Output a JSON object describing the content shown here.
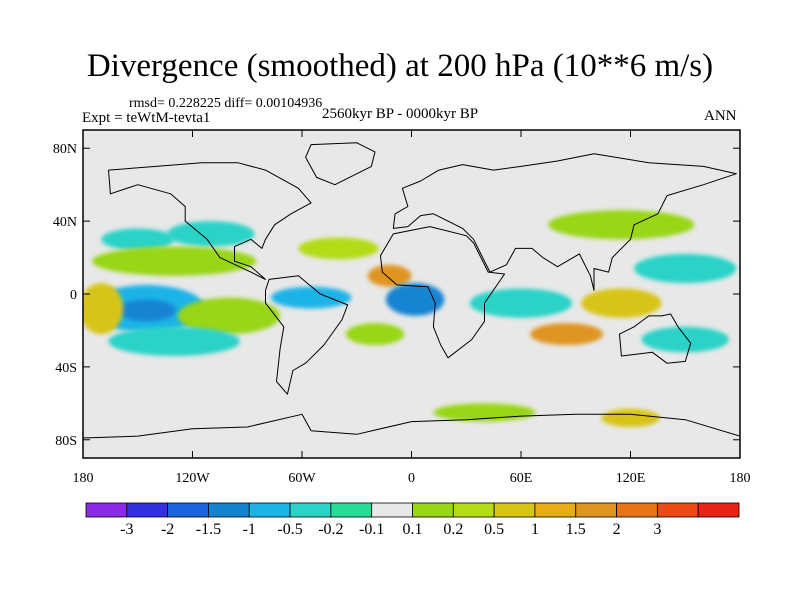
{
  "header": {
    "title": "Divergence (smoothed) at 200 hPa (10**6 m/s)",
    "stats": "rmsd= 0.228225 diff= 0.00104936",
    "experiment": "Expt = teWtM-tevta1",
    "period": "2560kyr BP - 0000kyr BP",
    "season": "ANN"
  },
  "map": {
    "projection": "cylindrical-equidistant",
    "lon_range": [
      -180,
      180
    ],
    "lat_range": [
      -90,
      90
    ],
    "x_ticks": [
      {
        "lon": -180,
        "label": "180"
      },
      {
        "lon": -120,
        "label": "120W"
      },
      {
        "lon": -60,
        "label": "60W"
      },
      {
        "lon": 0,
        "label": "0"
      },
      {
        "lon": 60,
        "label": "60E"
      },
      {
        "lon": 120,
        "label": "120E"
      },
      {
        "lon": 180,
        "label": "180"
      }
    ],
    "y_ticks": [
      {
        "lat": 80,
        "label": "80N"
      },
      {
        "lat": 40,
        "label": "40N"
      },
      {
        "lat": 0,
        "label": "0"
      },
      {
        "lat": -40,
        "label": "40S"
      },
      {
        "lat": -80,
        "label": "80S"
      }
    ],
    "colors": {
      "ocean": "#e8e8e8",
      "coast": "#000000"
    },
    "anomaly_blobs": [
      {
        "name": "cyan-n-pacific-1",
        "lon": -150,
        "lat": 30,
        "rlon": 20,
        "rlat": 6,
        "color": "#2cd2c8"
      },
      {
        "name": "cyan-n-pacific-2",
        "lon": -110,
        "lat": 33,
        "rlon": 24,
        "rlat": 7,
        "color": "#2cd2c8"
      },
      {
        "name": "green-n-pacific",
        "lon": -130,
        "lat": 18,
        "rlon": 45,
        "rlat": 8,
        "color": "#98d616"
      },
      {
        "name": "blue-e-pacific-outer",
        "lon": -145,
        "lat": -8,
        "rlon": 32,
        "rlat": 13,
        "color": "#1ab4e8"
      },
      {
        "name": "blue-e-pacific-inner",
        "lon": -145,
        "lat": -9,
        "rlon": 16,
        "rlat": 6,
        "color": "#1484d2"
      },
      {
        "name": "green-s-pacific",
        "lon": -100,
        "lat": -12,
        "rlon": 28,
        "rlat": 10,
        "color": "#98d616"
      },
      {
        "name": "cyan-s-pacific",
        "lon": -130,
        "lat": -26,
        "rlon": 36,
        "rlat": 8,
        "color": "#2cd2c8"
      },
      {
        "name": "yellow-w-pacific",
        "lon": -170,
        "lat": -8,
        "rlon": 12,
        "rlat": 14,
        "color": "#d8c414"
      },
      {
        "name": "green-atlantic-n",
        "lon": -40,
        "lat": 25,
        "rlon": 22,
        "rlat": 6,
        "color": "#b4dc14"
      },
      {
        "name": "blue-s-america",
        "lon": -55,
        "lat": -2,
        "rlon": 22,
        "rlat": 6,
        "color": "#1ab4e8"
      },
      {
        "name": "orange-w-africa",
        "lon": -12,
        "lat": 10,
        "rlon": 12,
        "rlat": 6,
        "color": "#e09420"
      },
      {
        "name": "blue-gulf-guinea",
        "lon": 2,
        "lat": -3,
        "rlon": 16,
        "rlat": 9,
        "color": "#1484d2"
      },
      {
        "name": "green-s-atlantic",
        "lon": -20,
        "lat": -22,
        "rlon": 16,
        "rlat": 6,
        "color": "#98d616"
      },
      {
        "name": "orange-indian",
        "lon": 85,
        "lat": -22,
        "rlon": 20,
        "rlat": 6,
        "color": "#e09420"
      },
      {
        "name": "cyan-indian",
        "lon": 60,
        "lat": -5,
        "rlon": 28,
        "rlat": 8,
        "color": "#2cd2c8"
      },
      {
        "name": "yellow-maritime",
        "lon": 115,
        "lat": -5,
        "rlon": 22,
        "rlat": 8,
        "color": "#d8c414"
      },
      {
        "name": "cyan-nw-pacific",
        "lon": 150,
        "lat": 14,
        "rlon": 28,
        "rlat": 8,
        "color": "#2cd2c8"
      },
      {
        "name": "green-asia",
        "lon": 115,
        "lat": 38,
        "rlon": 40,
        "rlat": 8,
        "color": "#98d616"
      },
      {
        "name": "cyan-sw-pacific",
        "lon": 150,
        "lat": -25,
        "rlon": 24,
        "rlat": 7,
        "color": "#2cd2c8"
      },
      {
        "name": "green-southern-ocean",
        "lon": 40,
        "lat": -65,
        "rlon": 28,
        "rlat": 5,
        "color": "#98d616"
      },
      {
        "name": "yellow-southern-ocean",
        "lon": 120,
        "lat": -68,
        "rlon": 16,
        "rlat": 5,
        "color": "#d8c414"
      }
    ],
    "continents": [
      {
        "name": "north-america",
        "points": [
          [
            -166,
            68
          ],
          [
            -140,
            70
          ],
          [
            -115,
            72
          ],
          [
            -95,
            72
          ],
          [
            -80,
            68
          ],
          [
            -62,
            58
          ],
          [
            -55,
            50
          ],
          [
            -66,
            44
          ],
          [
            -75,
            38
          ],
          [
            -80,
            30
          ],
          [
            -82,
            25
          ],
          [
            -88,
            30
          ],
          [
            -97,
            26
          ],
          [
            -97,
            18
          ],
          [
            -88,
            15
          ],
          [
            -80,
            8
          ],
          [
            -88,
            12
          ],
          [
            -105,
            20
          ],
          [
            -112,
            30
          ],
          [
            -124,
            40
          ],
          [
            -124,
            48
          ],
          [
            -132,
            55
          ],
          [
            -150,
            60
          ],
          [
            -165,
            55
          ]
        ]
      },
      {
        "name": "greenland",
        "points": [
          [
            -55,
            82
          ],
          [
            -30,
            83
          ],
          [
            -20,
            78
          ],
          [
            -22,
            70
          ],
          [
            -42,
            60
          ],
          [
            -52,
            64
          ],
          [
            -58,
            75
          ]
        ]
      },
      {
        "name": "south-america",
        "points": [
          [
            -78,
            8
          ],
          [
            -62,
            10
          ],
          [
            -50,
            0
          ],
          [
            -35,
            -6
          ],
          [
            -38,
            -14
          ],
          [
            -48,
            -28
          ],
          [
            -58,
            -38
          ],
          [
            -65,
            -42
          ],
          [
            -68,
            -55
          ],
          [
            -74,
            -48
          ],
          [
            -72,
            -30
          ],
          [
            -70,
            -18
          ],
          [
            -80,
            -5
          ],
          [
            -80,
            2
          ]
        ]
      },
      {
        "name": "africa",
        "points": [
          [
            -17,
            21
          ],
          [
            -10,
            33
          ],
          [
            10,
            37
          ],
          [
            30,
            32
          ],
          [
            34,
            28
          ],
          [
            42,
            12
          ],
          [
            51,
            11
          ],
          [
            40,
            -5
          ],
          [
            40,
            -15
          ],
          [
            33,
            -25
          ],
          [
            20,
            -35
          ],
          [
            16,
            -28
          ],
          [
            12,
            -18
          ],
          [
            13,
            -5
          ],
          [
            9,
            4
          ],
          [
            -8,
            5
          ],
          [
            -16,
            12
          ]
        ]
      },
      {
        "name": "eurasia",
        "points": [
          [
            -10,
            36
          ],
          [
            -9,
            44
          ],
          [
            -2,
            48
          ],
          [
            -5,
            58
          ],
          [
            5,
            62
          ],
          [
            15,
            68
          ],
          [
            28,
            71
          ],
          [
            45,
            68
          ],
          [
            60,
            70
          ],
          [
            80,
            73
          ],
          [
            100,
            77
          ],
          [
            130,
            72
          ],
          [
            160,
            70
          ],
          [
            178,
            66
          ],
          [
            160,
            60
          ],
          [
            140,
            54
          ],
          [
            135,
            44
          ],
          [
            122,
            38
          ],
          [
            120,
            30
          ],
          [
            110,
            20
          ],
          [
            108,
            12
          ],
          [
            100,
            14
          ],
          [
            100,
            2
          ],
          [
            98,
            10
          ],
          [
            92,
            22
          ],
          [
            80,
            15
          ],
          [
            72,
            20
          ],
          [
            66,
            25
          ],
          [
            57,
            25
          ],
          [
            52,
            16
          ],
          [
            43,
            12
          ],
          [
            38,
            22
          ],
          [
            34,
            30
          ],
          [
            28,
            36
          ],
          [
            20,
            40
          ],
          [
            12,
            44
          ],
          [
            5,
            43
          ],
          [
            -2,
            37
          ]
        ]
      },
      {
        "name": "australia",
        "points": [
          [
            114,
            -22
          ],
          [
            122,
            -18
          ],
          [
            130,
            -12
          ],
          [
            137,
            -12
          ],
          [
            142,
            -11
          ],
          [
            146,
            -18
          ],
          [
            153,
            -27
          ],
          [
            150,
            -37
          ],
          [
            140,
            -38
          ],
          [
            132,
            -32
          ],
          [
            115,
            -34
          ]
        ]
      },
      {
        "name": "antarctica",
        "points": [
          [
            -180,
            -79
          ],
          [
            -150,
            -78
          ],
          [
            -120,
            -74
          ],
          [
            -90,
            -73
          ],
          [
            -60,
            -66
          ],
          [
            -55,
            -75
          ],
          [
            -30,
            -77
          ],
          [
            0,
            -70
          ],
          [
            30,
            -69
          ],
          [
            60,
            -67
          ],
          [
            90,
            -66
          ],
          [
            120,
            -66
          ],
          [
            150,
            -69
          ],
          [
            180,
            -78
          ],
          [
            180,
            -90
          ],
          [
            -180,
            -90
          ]
        ]
      }
    ]
  },
  "colorbar": {
    "colors": [
      "#8c2aea",
      "#3430e0",
      "#1a64e0",
      "#1484d2",
      "#1ab4e8",
      "#2cd2c8",
      "#28dc96",
      "#e8e8e8",
      "#98d616",
      "#b4dc14",
      "#d8c414",
      "#e8ac18",
      "#e09420",
      "#e87418",
      "#ea4c14",
      "#ea2414"
    ],
    "labels": [
      "-3",
      "-2",
      "-1.5",
      "-1",
      "-0.5",
      "-0.2",
      "-0.1",
      "0.1",
      "0.2",
      "0.5",
      "1",
      "1.5",
      "2",
      "3"
    ]
  }
}
